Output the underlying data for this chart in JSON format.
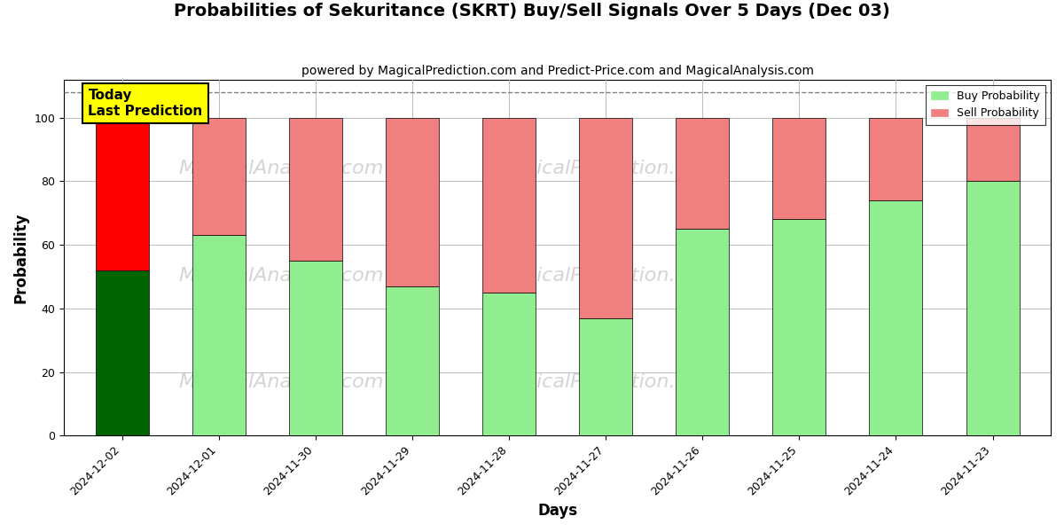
{
  "title": "Probabilities of Sekuritance (SKRT) Buy/Sell Signals Over 5 Days (Dec 03)",
  "subtitle": "powered by MagicalPrediction.com and Predict-Price.com and MagicalAnalysis.com",
  "xlabel": "Days",
  "ylabel": "Probability",
  "categories": [
    "2024-12-02",
    "2024-12-01",
    "2024-11-30",
    "2024-11-29",
    "2024-11-28",
    "2024-11-27",
    "2024-11-26",
    "2024-11-25",
    "2024-11-24",
    "2024-11-23"
  ],
  "buy_values": [
    52,
    63,
    55,
    47,
    45,
    37,
    65,
    68,
    74,
    80
  ],
  "sell_values": [
    48,
    37,
    45,
    53,
    55,
    63,
    35,
    32,
    26,
    20
  ],
  "today_bar_buy_color": "#006400",
  "today_bar_sell_color": "#FF0000",
  "other_bar_buy_color": "#90EE90",
  "other_bar_sell_color": "#F08080",
  "today_label": "Today\nLast Prediction",
  "legend_buy_label": "Buy Probability",
  "legend_sell_label": "Sell Probability",
  "ylim": [
    0,
    112
  ],
  "yticks": [
    0,
    20,
    40,
    60,
    80,
    100
  ],
  "dashed_line_y": 108,
  "annotation_box_color": "#FFFF00",
  "background_color": "#FFFFFF",
  "grid_color": "#BBBBBB",
  "title_fontsize": 14,
  "subtitle_fontsize": 10,
  "axis_label_fontsize": 12,
  "tick_fontsize": 9,
  "bar_width": 0.55
}
